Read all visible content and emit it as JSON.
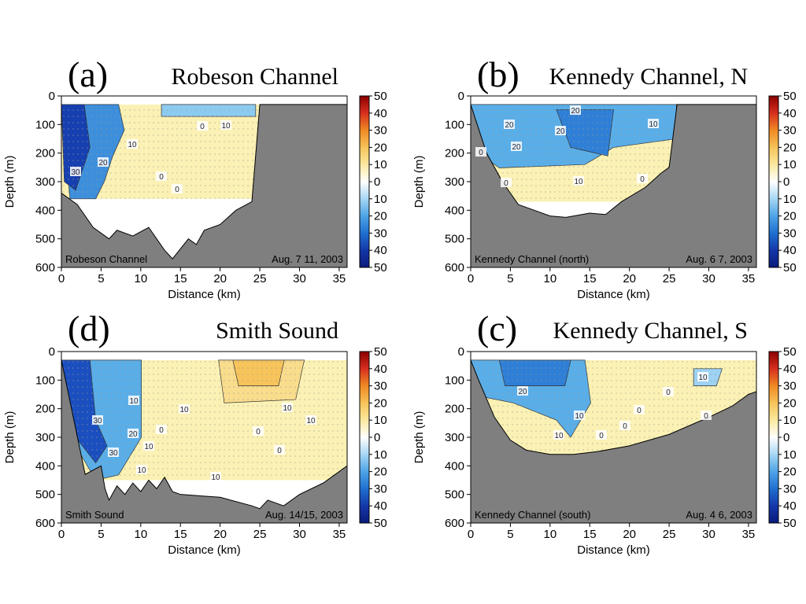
{
  "chart_data": [
    {
      "type": "contour",
      "panel_label": "(a)",
      "title": "Robeson Channel",
      "inset_label": "Robeson Channel",
      "date_label": "Aug. 7  11, 2003",
      "xlabel": "Distance (km)",
      "ylabel": "Depth (m)",
      "xlim": [
        0,
        36
      ],
      "xticks": [
        0,
        5,
        10,
        15,
        20,
        25,
        30,
        35
      ],
      "ylim": [
        0,
        600
      ],
      "y_inverted": true,
      "yticks": [
        0,
        100,
        200,
        300,
        400,
        500,
        600
      ],
      "colorbar": {
        "lim": [
          -50,
          50
        ],
        "ticks": [
          50,
          40,
          30,
          20,
          10,
          0,
          {
            "value": -10,
            "label": "10"
          },
          {
            "value": -20,
            "label": "20"
          },
          {
            "value": -30,
            "label": "30"
          },
          {
            "value": -40,
            "label": "40"
          },
          {
            "value": -50,
            "label": "50"
          }
        ],
        "colors": [
          "#8b0000",
          "#d7301f",
          "#f08a24",
          "#f6c45a",
          "#fbe9a0",
          "#ffffff",
          "#a6d6f4",
          "#4da3e6",
          "#1f6fd0",
          "#1437a8",
          "#0a1a7a"
        ]
      },
      "bottom_color": "#7f7f7f",
      "bottom": {
        "x": [
          0,
          2,
          4,
          6,
          7,
          9,
          11,
          13,
          14,
          16,
          17,
          18,
          20,
          22,
          24,
          25,
          36
        ],
        "depth": [
          340,
          380,
          460,
          500,
          470,
          490,
          460,
          540,
          570,
          500,
          520,
          470,
          450,
          400,
          370,
          30,
          30
        ]
      },
      "contour_labels": [
        "10",
        "0",
        "10",
        "30",
        "20",
        "0",
        "0"
      ]
    },
    {
      "type": "contour",
      "panel_label": "(b)",
      "title": "Kennedy Channel, N",
      "inset_label": "Kennedy Channel (north)",
      "date_label": "Aug. 6  7, 2003",
      "xlabel": "Distance (km)",
      "ylabel": "Depth (m)",
      "xlim": [
        0,
        36
      ],
      "xticks": [
        0,
        5,
        10,
        15,
        20,
        25,
        30,
        35
      ],
      "ylim": [
        0,
        600
      ],
      "y_inverted": true,
      "yticks": [
        0,
        100,
        200,
        300,
        400,
        500,
        600
      ],
      "colorbar": {
        "lim": [
          -50,
          50
        ],
        "ticks": [
          50,
          40,
          30,
          20,
          10,
          0,
          {
            "value": -10,
            "label": "10"
          },
          {
            "value": -20,
            "label": "20"
          },
          {
            "value": -30,
            "label": "30"
          },
          {
            "value": -40,
            "label": "40"
          },
          {
            "value": -50,
            "label": "50"
          }
        ],
        "colors": [
          "#8b0000",
          "#d7301f",
          "#f08a24",
          "#f6c45a",
          "#fbe9a0",
          "#ffffff",
          "#a6d6f4",
          "#4da3e6",
          "#1f6fd0",
          "#1437a8",
          "#0a1a7a"
        ]
      },
      "bottom_color": "#7f7f7f",
      "bottom": {
        "x": [
          0,
          2,
          4,
          6,
          8,
          10,
          12,
          15,
          17,
          19,
          22,
          24,
          25,
          26,
          36
        ],
        "depth": [
          30,
          200,
          300,
          380,
          400,
          420,
          425,
          410,
          415,
          370,
          320,
          270,
          250,
          30,
          30
        ]
      },
      "contour_labels": [
        "20",
        "20",
        "20",
        "20",
        "10",
        "0",
        "0",
        "10",
        "0"
      ]
    },
    {
      "type": "contour",
      "panel_label": "(d)",
      "title": "Smith Sound",
      "inset_label": "Smith Sound",
      "date_label": "Aug. 14/15, 2003",
      "xlabel": "Distance (km)",
      "ylabel": "Depth (m)",
      "xlim": [
        0,
        36
      ],
      "xticks": [
        0,
        5,
        10,
        15,
        20,
        25,
        30,
        35
      ],
      "ylim": [
        0,
        600
      ],
      "y_inverted": true,
      "yticks": [
        0,
        100,
        200,
        300,
        400,
        500,
        600
      ],
      "colorbar": {
        "lim": [
          -50,
          50
        ],
        "ticks": [
          50,
          40,
          30,
          20,
          10,
          0,
          {
            "value": -10,
            "label": "10"
          },
          {
            "value": -20,
            "label": "20"
          },
          {
            "value": -30,
            "label": "30"
          },
          {
            "value": -40,
            "label": "40"
          },
          {
            "value": -50,
            "label": "50"
          }
        ],
        "colors": [
          "#8b0000",
          "#d7301f",
          "#f08a24",
          "#f6c45a",
          "#fbe9a0",
          "#ffffff",
          "#a6d6f4",
          "#4da3e6",
          "#1f6fd0",
          "#1437a8",
          "#0a1a7a"
        ]
      },
      "bottom_color": "#7f7f7f",
      "bottom": {
        "x": [
          0,
          3,
          5,
          5.5,
          6,
          7,
          8,
          9,
          10,
          11,
          12,
          13,
          14,
          15,
          20,
          24,
          25,
          26,
          28,
          30,
          33,
          36
        ],
        "depth": [
          30,
          430,
          400,
          480,
          520,
          470,
          500,
          460,
          490,
          450,
          480,
          440,
          490,
          500,
          510,
          540,
          550,
          520,
          540,
          500,
          460,
          400
        ]
      },
      "contour_labels": [
        "10",
        "10",
        "30",
        "20",
        "0",
        "10",
        "30",
        "10",
        "10",
        "0",
        "0",
        "10",
        "10"
      ]
    },
    {
      "type": "contour",
      "panel_label": "(c)",
      "title": "Kennedy Channel, S",
      "inset_label": "Kennedy Channel (south)",
      "date_label": "Aug. 4  6, 2003",
      "xlabel": "Distance (km)",
      "ylabel": "Depth (m)",
      "xlim": [
        0,
        36
      ],
      "xticks": [
        0,
        5,
        10,
        15,
        20,
        25,
        30,
        35
      ],
      "ylim": [
        0,
        600
      ],
      "y_inverted": true,
      "yticks": [
        0,
        100,
        200,
        300,
        400,
        500,
        600
      ],
      "colorbar": {
        "lim": [
          -50,
          50
        ],
        "ticks": [
          50,
          40,
          30,
          20,
          10,
          0,
          {
            "value": -10,
            "label": "10"
          },
          {
            "value": -20,
            "label": "20"
          },
          {
            "value": -30,
            "label": "30"
          },
          {
            "value": -40,
            "label": "40"
          },
          {
            "value": -50,
            "label": "50"
          }
        ],
        "colors": [
          "#8b0000",
          "#d7301f",
          "#f08a24",
          "#f6c45a",
          "#fbe9a0",
          "#ffffff",
          "#a6d6f4",
          "#4da3e6",
          "#1f6fd0",
          "#1437a8",
          "#0a1a7a"
        ]
      },
      "bottom_color": "#7f7f7f",
      "bottom": {
        "x": [
          0,
          1,
          3,
          5,
          7,
          10,
          13,
          16,
          20,
          25,
          30,
          33,
          35,
          36
        ],
        "depth": [
          30,
          100,
          230,
          310,
          345,
          360,
          360,
          350,
          330,
          290,
          230,
          190,
          150,
          140
        ]
      },
      "contour_labels": [
        "20",
        "10",
        "0",
        "10",
        "0",
        "10",
        "0",
        "0",
        "0"
      ]
    }
  ]
}
